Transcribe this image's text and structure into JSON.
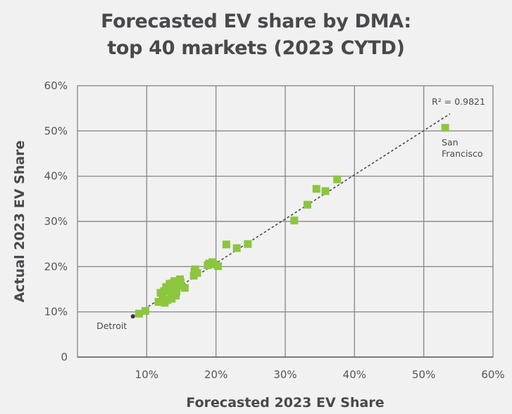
{
  "chart_data": {
    "type": "scatter",
    "title": "Forecasted EV share by DMA:",
    "subtitle": "top 40 markets (2023 CYTD)",
    "xlabel": "Forecasted 2023 EV Share",
    "ylabel": "Actual 2023 EV Share",
    "xlim": [
      0,
      60
    ],
    "ylim": [
      0,
      60
    ],
    "x_ticks": [
      10,
      20,
      30,
      40,
      50,
      60
    ],
    "x_tick_labels": [
      "10%",
      "20%",
      "30%",
      "40%",
      "50%",
      "60%"
    ],
    "y_ticks": [
      0,
      10,
      20,
      30,
      40,
      50,
      60
    ],
    "y_tick_labels": [
      "0",
      "10%",
      "20%",
      "30%",
      "40%",
      "50%",
      "60%"
    ],
    "grid": true,
    "marker_color": "#8cc63f",
    "series": [
      {
        "name": "DMA",
        "points": [
          {
            "x": 8.9,
            "y": 9.6
          },
          {
            "x": 9.8,
            "y": 10.2
          },
          {
            "x": 11.7,
            "y": 12.2
          },
          {
            "x": 12.0,
            "y": 14.2
          },
          {
            "x": 12.3,
            "y": 13.0
          },
          {
            "x": 12.5,
            "y": 14.6
          },
          {
            "x": 12.6,
            "y": 12.0
          },
          {
            "x": 12.8,
            "y": 15.5
          },
          {
            "x": 13.0,
            "y": 12.6
          },
          {
            "x": 13.1,
            "y": 15.0
          },
          {
            "x": 13.3,
            "y": 16.2
          },
          {
            "x": 13.5,
            "y": 14.0
          },
          {
            "x": 13.6,
            "y": 12.9
          },
          {
            "x": 13.7,
            "y": 16.3
          },
          {
            "x": 13.9,
            "y": 15.2
          },
          {
            "x": 14.0,
            "y": 16.8
          },
          {
            "x": 14.2,
            "y": 13.6
          },
          {
            "x": 14.3,
            "y": 14.5
          },
          {
            "x": 14.5,
            "y": 15.8
          },
          {
            "x": 14.8,
            "y": 17.2
          },
          {
            "x": 14.9,
            "y": 16.5
          },
          {
            "x": 15.5,
            "y": 15.3
          },
          {
            "x": 16.8,
            "y": 18.0
          },
          {
            "x": 16.9,
            "y": 18.9
          },
          {
            "x": 17.0,
            "y": 19.4
          },
          {
            "x": 17.3,
            "y": 18.6
          },
          {
            "x": 18.8,
            "y": 20.3
          },
          {
            "x": 19.0,
            "y": 20.7
          },
          {
            "x": 19.5,
            "y": 21.0
          },
          {
            "x": 19.8,
            "y": 20.5
          },
          {
            "x": 20.3,
            "y": 20.1
          },
          {
            "x": 21.5,
            "y": 24.9
          },
          {
            "x": 23.0,
            "y": 24.1
          },
          {
            "x": 24.6,
            "y": 25.0
          },
          {
            "x": 31.3,
            "y": 30.2
          },
          {
            "x": 33.2,
            "y": 33.7
          },
          {
            "x": 34.5,
            "y": 37.2
          },
          {
            "x": 35.8,
            "y": 36.7
          },
          {
            "x": 37.5,
            "y": 39.3
          },
          {
            "x": 53.1,
            "y": 50.7
          }
        ]
      }
    ],
    "trendline": {
      "type": "linear",
      "from": {
        "x": 8.0,
        "y": 9.0
      },
      "to": {
        "x": 53.8,
        "y": 53.8
      },
      "style": "dotted",
      "color": "#4a4a4f",
      "r_squared_label": "R² = 0.9821"
    },
    "annotations": [
      {
        "text": "Detroit",
        "x": 8.0,
        "y": 9.0,
        "lines": [
          "Detroit"
        ],
        "anchor": "below-left"
      },
      {
        "text": "San Francisco",
        "x": 53.1,
        "y": 50.7,
        "lines": [
          "San",
          "Francisco"
        ],
        "anchor": "below"
      }
    ]
  }
}
